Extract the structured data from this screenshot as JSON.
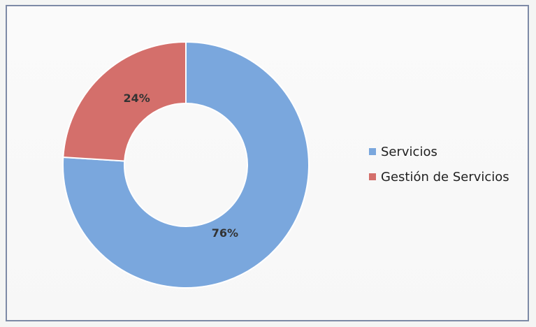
{
  "chart_data": {
    "type": "pie",
    "title": "",
    "donut": true,
    "categories": [
      "Servicios",
      "Gestión de Servicios"
    ],
    "values": [
      76,
      24
    ],
    "labels": [
      "76%",
      "24%"
    ],
    "colors": [
      "#7aa7dd",
      "#d46f6b"
    ],
    "legend_position": "right"
  }
}
